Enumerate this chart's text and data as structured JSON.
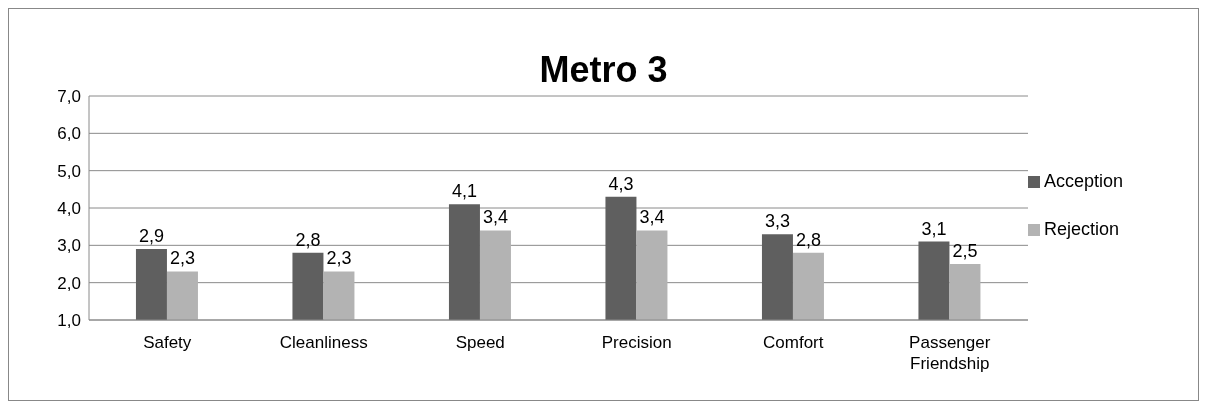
{
  "chart_data": {
    "type": "bar",
    "title": "Metro 3",
    "categories": [
      "Safety",
      "Cleanliness",
      "Speed",
      "Precision",
      "Comfort",
      "Passenger Friendship"
    ],
    "series": [
      {
        "name": "Acception",
        "color": "#5f5f5f",
        "values": [
          2.9,
          2.8,
          4.1,
          4.3,
          3.3,
          3.1
        ],
        "value_labels": [
          "2,9",
          "2,8",
          "4,1",
          "4,3",
          "3,3",
          "3,1"
        ]
      },
      {
        "name": "Rejection",
        "color": "#b3b3b3",
        "values": [
          2.3,
          2.3,
          3.4,
          3.4,
          2.8,
          2.5
        ],
        "value_labels": [
          "2,3",
          "2,3",
          "3,4",
          "3,4",
          "2,8",
          "2,5"
        ]
      }
    ],
    "ylim": [
      1,
      7
    ],
    "yticks": [
      {
        "value": 1,
        "label": "1,0"
      },
      {
        "value": 2,
        "label": "2,0"
      },
      {
        "value": 3,
        "label": "3,0"
      },
      {
        "value": 4,
        "label": "4,0"
      },
      {
        "value": 5,
        "label": "5,0"
      },
      {
        "value": 6,
        "label": "6,0"
      },
      {
        "value": 7,
        "label": "7,0"
      }
    ],
    "grid": "y",
    "legend": "right"
  }
}
